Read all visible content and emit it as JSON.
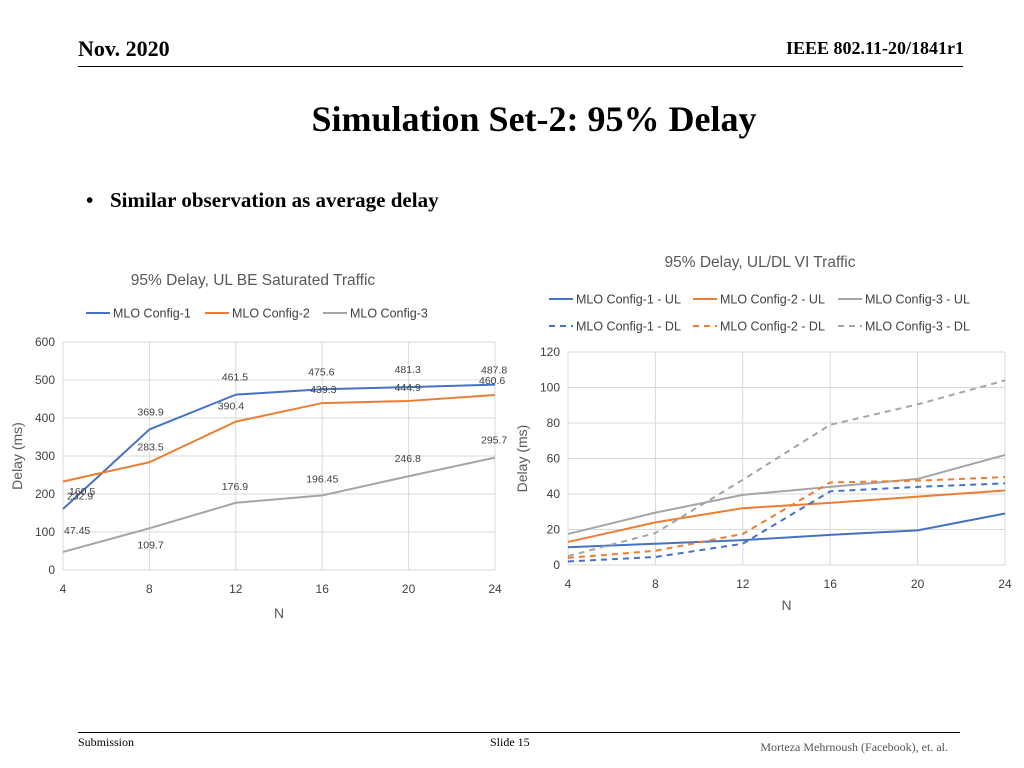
{
  "header": {
    "date": "Nov. 2020",
    "doc_id": "IEEE 802.11-20/1841r1"
  },
  "slide_title": "Simulation Set-2: 95% Delay",
  "bullets": [
    "Similar observation as average delay"
  ],
  "footer": {
    "left": "Submission",
    "center": "Slide 15",
    "right": "Morteza Mehrnoush (Facebook), et. al."
  },
  "colors": {
    "config1": "#4472C4",
    "config2": "#ED7D31",
    "config3": "#A5A5A5"
  },
  "chart_data": [
    {
      "type": "line",
      "title": "95% Delay, UL BE Saturated Traffic",
      "xlabel": "N",
      "ylabel": "Delay (ms)",
      "x": [
        4,
        8,
        12,
        16,
        20,
        24
      ],
      "ylim": [
        0,
        600
      ],
      "yticks": [
        0,
        100,
        200,
        300,
        400,
        500,
        600
      ],
      "legend_position": "top",
      "grid": true,
      "data_labels": true,
      "series": [
        {
          "name": "MLO Config-1",
          "color": "#4472C4",
          "dashed": false,
          "values": [
            160.5,
            369.9,
            461.5,
            475.6,
            481.3,
            487.8
          ]
        },
        {
          "name": "MLO Config-2",
          "color": "#ED7D31",
          "dashed": false,
          "values": [
            232.9,
            283.5,
            390.4,
            439.3,
            444.9,
            460.6
          ]
        },
        {
          "name": "MLO Config-3",
          "color": "#A5A5A5",
          "dashed": false,
          "values": [
            47.45,
            109.7,
            176.9,
            196.45,
            246.8,
            295.7
          ]
        }
      ]
    },
    {
      "type": "line",
      "title": "95% Delay, UL/DL VI Traffic",
      "xlabel": "N",
      "ylabel": "Delay (ms)",
      "x": [
        4,
        8,
        12,
        16,
        20,
        24
      ],
      "ylim": [
        0,
        120
      ],
      "yticks": [
        0,
        20,
        40,
        60,
        80,
        100,
        120
      ],
      "legend_position": "top",
      "grid": true,
      "data_labels": false,
      "series": [
        {
          "name": "MLO Config-1 - UL",
          "color": "#4472C4",
          "dashed": false,
          "values": [
            10,
            12,
            14,
            17,
            19.5,
            29
          ]
        },
        {
          "name": "MLO Config-2 - UL",
          "color": "#ED7D31",
          "dashed": false,
          "values": [
            13,
            24,
            32,
            35,
            38.5,
            42
          ]
        },
        {
          "name": "MLO Config-3 - UL",
          "color": "#A5A5A5",
          "dashed": false,
          "values": [
            17.5,
            29.5,
            39.5,
            44,
            48.5,
            62
          ]
        },
        {
          "name": "MLO Config-1 - DL",
          "color": "#4472C4",
          "dashed": true,
          "values": [
            2,
            4.5,
            12,
            41.5,
            44,
            46
          ]
        },
        {
          "name": "MLO Config-2 - DL",
          "color": "#ED7D31",
          "dashed": true,
          "values": [
            4,
            8,
            17.5,
            46.5,
            47.5,
            49.5
          ]
        },
        {
          "name": "MLO Config-3 - DL",
          "color": "#A5A5A5",
          "dashed": true,
          "values": [
            5,
            18,
            48,
            79,
            90.5,
            104
          ]
        }
      ]
    }
  ]
}
